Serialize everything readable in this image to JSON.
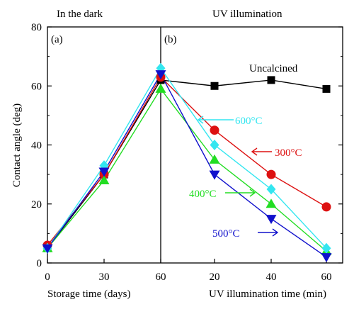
{
  "chart_data": {
    "type": "line",
    "ylabel": "Contact angle (deg)",
    "ylim": [
      0,
      80
    ],
    "yticks": [
      0,
      20,
      40,
      60,
      80
    ],
    "xlabel_left": "Storage time (days)",
    "xlabel_right": "UV illumination time (min)",
    "section_titles": [
      "In the dark",
      "UV illumination"
    ],
    "panel_labels": [
      "(a)",
      "(b)"
    ],
    "x_ticks": [
      "0",
      "30",
      "60",
      "20",
      "40",
      "60"
    ],
    "series": [
      {
        "name": "Uncalcined",
        "color": "#000000",
        "marker": "square",
        "dark": [
          5,
          30,
          62
        ],
        "uv": [
          62,
          60,
          62,
          59
        ]
      },
      {
        "name": "300°C",
        "color": "#dd1111",
        "marker": "circle",
        "dark": [
          6,
          30,
          63
        ],
        "uv": [
          63,
          45,
          30,
          19
        ]
      },
      {
        "name": "400°C",
        "color": "#22dd22",
        "marker": "triangle-up",
        "dark": [
          5,
          28,
          59
        ],
        "uv": [
          59,
          35,
          20,
          4
        ]
      },
      {
        "name": "500°C",
        "color": "#1111cc",
        "marker": "triangle-down",
        "dark": [
          5,
          31,
          64
        ],
        "uv": [
          64,
          30,
          15,
          2
        ]
      },
      {
        "name": "600°C",
        "color": "#33e6f0",
        "marker": "diamond",
        "dark": [
          5,
          33,
          66
        ],
        "uv": [
          66,
          40,
          25,
          5
        ]
      }
    ],
    "annotations": [
      "Uncalcined",
      "600°C",
      "300°C",
      "400°C",
      "500°C"
    ]
  }
}
